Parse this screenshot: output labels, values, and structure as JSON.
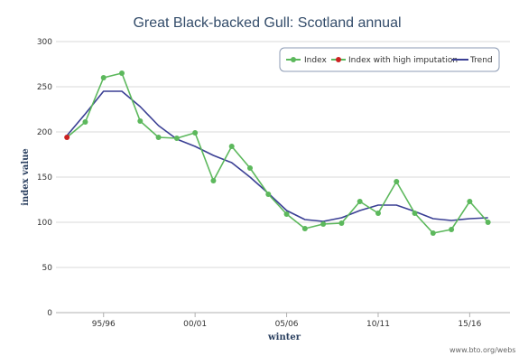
{
  "chart_data": {
    "type": "line",
    "title": "Great Black-backed Gull: Scotland annual",
    "xlabel": "winter",
    "ylabel": "index value",
    "ylim": [
      0,
      300
    ],
    "yticks": [
      0,
      50,
      100,
      150,
      200,
      250,
      300
    ],
    "xlim": [
      1992.4,
      2017.2
    ],
    "xticks": [
      {
        "label": "95/96",
        "value": 1995
      },
      {
        "label": "00/01",
        "value": 2000
      },
      {
        "label": "05/06",
        "value": 2005
      },
      {
        "label": "10/11",
        "value": 2010
      },
      {
        "label": "15/16",
        "value": 2015
      }
    ],
    "grid": "horizontal",
    "legend_position": "top-right",
    "series": [
      {
        "name": "Index",
        "color": "#5cb85c",
        "x": [
          1993,
          1994,
          1995,
          1996,
          1997,
          1998,
          1999,
          2000,
          2001,
          2002,
          2003,
          2004,
          2005,
          2006,
          2007,
          2008,
          2009,
          2010,
          2011,
          2012,
          2013,
          2014,
          2015,
          2016
        ],
        "values": [
          194,
          211,
          260,
          265,
          212,
          194,
          193,
          199,
          146,
          184,
          160,
          131,
          109,
          93,
          98,
          99,
          123,
          110,
          145,
          110,
          88,
          92,
          123,
          100
        ]
      },
      {
        "name": "Index with high imputation",
        "color": "#cc2222",
        "x": [
          1993
        ],
        "values": [
          194
        ]
      },
      {
        "name": "Trend",
        "color": "#3a3f94",
        "x": [
          1993,
          1994,
          1995,
          1996,
          1997,
          1998,
          1999,
          2000,
          2001,
          2002,
          2003,
          2004,
          2005,
          2006,
          2007,
          2008,
          2009,
          2010,
          2011,
          2012,
          2013,
          2014,
          2015,
          2016
        ],
        "values": [
          196,
          220,
          245,
          245,
          228,
          207,
          192,
          184,
          174,
          166,
          150,
          132,
          113,
          103,
          101,
          105,
          113,
          119,
          119,
          112,
          104,
          102,
          104,
          105
        ]
      }
    ]
  },
  "credit": "www.bto.org/webs"
}
